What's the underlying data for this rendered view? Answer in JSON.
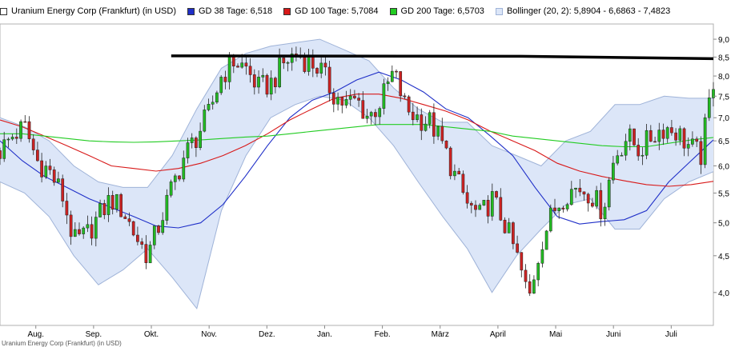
{
  "legend": {
    "main": "Uranium Energy Corp (Frankfurt) (in USD)",
    "gd38": "GD 38 Tage: 6,518",
    "gd100": "GD 100 Tage: 5,7084",
    "gd200": "GD 200 Tage: 6,5703",
    "bollinger": "Bollinger (20, 2): 5,8904 - 6,6863 - 7,4823"
  },
  "colors": {
    "gd38": "#1f2fc8",
    "gd100": "#d81818",
    "gd200": "#22cc22",
    "bollinger_fill": "#dce6f8",
    "bollinger_line": "#9fb3d8",
    "candle_up": "#22bb22",
    "candle_down": "#cc2222",
    "resistance": "#000000"
  },
  "chart_data": {
    "type": "line",
    "y_scale": "log",
    "y_ticks": [
      4.0,
      4.5,
      5.0,
      5.5,
      6.0,
      6.5,
      7.0,
      7.5,
      8.0,
      8.5,
      9.0
    ],
    "y_tick_labels": [
      "4,0",
      "4,5",
      "5,0",
      "5,5",
      "6,0",
      "6,5",
      "7,0",
      "7,5",
      "8,0",
      "8,5",
      "9,0"
    ],
    "months": [
      "Aug.",
      "Sep.",
      "Okt.",
      "Nov.",
      "Dez.",
      "Jan.",
      "Feb.",
      "März",
      "April",
      "Mai",
      "Juni",
      "Juli"
    ],
    "resistance_level": 8.5,
    "close_by_week": [
      6.3,
      6.6,
      6.8,
      6.1,
      5.9,
      5.5,
      4.7,
      4.8,
      5.1,
      5.4,
      5.2,
      4.8,
      4.5,
      5.0,
      5.6,
      6.2,
      6.6,
      7.1,
      8.0,
      8.4,
      8.2,
      7.7,
      7.8,
      8.3,
      8.6,
      8.4,
      8.2,
      7.6,
      7.3,
      7.4,
      7.0,
      7.4,
      8.1,
      7.2,
      7.0,
      6.9,
      6.4,
      5.8,
      5.3,
      5.1,
      5.4,
      5.0,
      4.5,
      3.9,
      4.7,
      5.2,
      5.5,
      5.6,
      5.5,
      5.2,
      6.2,
      6.6,
      6.3,
      6.6,
      6.8,
      6.7,
      6.4,
      6.2,
      7.9
    ],
    "series": [
      {
        "name": "GD 38 Tage",
        "values": [
          6.5,
          6.1,
          5.8,
          5.6,
          5.4,
          5.25,
          5.1,
          4.95,
          4.92,
          5.0,
          5.3,
          5.8,
          6.4,
          7.0,
          7.4,
          7.6,
          7.9,
          8.1,
          7.9,
          7.6,
          7.2,
          7.0,
          6.6,
          6.2,
          5.6,
          5.1,
          4.98,
          5.02,
          5.05,
          5.2,
          5.7,
          6.1,
          6.52
        ]
      },
      {
        "name": "GD 100 Tage",
        "values": [
          6.95,
          6.8,
          6.6,
          6.4,
          6.2,
          6.0,
          5.95,
          5.9,
          5.95,
          6.05,
          6.2,
          6.4,
          6.65,
          6.95,
          7.2,
          7.45,
          7.55,
          7.55,
          7.45,
          7.3,
          7.15,
          6.95,
          6.7,
          6.5,
          6.3,
          6.05,
          5.9,
          5.8,
          5.72,
          5.65,
          5.62,
          5.65,
          5.71
        ]
      },
      {
        "name": "GD 200 Tage",
        "values": [
          6.65,
          6.65,
          6.6,
          6.55,
          6.5,
          6.48,
          6.47,
          6.48,
          6.5,
          6.52,
          6.55,
          6.58,
          6.6,
          6.65,
          6.7,
          6.75,
          6.8,
          6.85,
          6.85,
          6.85,
          6.8,
          6.75,
          6.7,
          6.6,
          6.55,
          6.5,
          6.45,
          6.4,
          6.38,
          6.38,
          6.45,
          6.52,
          6.57
        ]
      }
    ],
    "bollinger_upper": [
      7.0,
      6.8,
      6.5,
      6.0,
      5.7,
      5.6,
      5.6,
      6.2,
      7.2,
      8.2,
      8.6,
      8.8,
      8.9,
      9.0,
      8.7,
      8.4,
      7.7,
      7.2,
      6.9,
      6.9,
      6.4,
      6.2,
      6.0,
      6.5,
      6.7,
      7.3,
      7.3,
      7.5,
      7.45,
      7.45
    ],
    "bollinger_lower": [
      5.7,
      5.5,
      5.1,
      4.5,
      4.1,
      4.3,
      4.6,
      4.2,
      3.8,
      5.2,
      6.2,
      7.0,
      7.3,
      7.5,
      7.4,
      7.0,
      6.4,
      5.7,
      5.1,
      4.6,
      4.0,
      4.5,
      4.9,
      5.3,
      5.4,
      4.9,
      4.9,
      5.4,
      5.7,
      5.89
    ]
  },
  "footer_text": "Uranium Energy Corp (Frankfurt) (in USD)"
}
